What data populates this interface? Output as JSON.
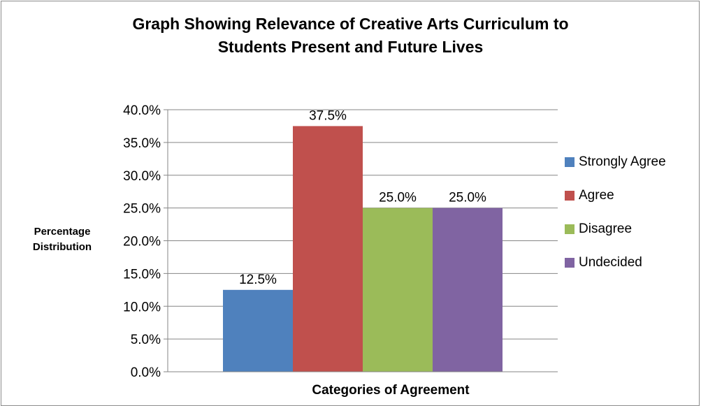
{
  "chart_data": {
    "type": "bar",
    "title_line1": "Graph Showing Relevance of Creative Arts Curriculum to",
    "title_line2": "Students Present and Future Lives",
    "ylabel_line1": "Percentage",
    "ylabel_line2": "Distribution",
    "xlabel": "Categories of Agreement",
    "ylim": [
      0,
      40
    ],
    "yticks": [
      "0.0%",
      "5.0%",
      "10.0%",
      "15.0%",
      "20.0%",
      "25.0%",
      "30.0%",
      "35.0%",
      "40.0%"
    ],
    "ytick_values": [
      0,
      5,
      10,
      15,
      20,
      25,
      30,
      35,
      40
    ],
    "grid": true,
    "legend_position": "right",
    "series": [
      {
        "name": "Strongly Agree",
        "value": 12.5,
        "label": "12.5%",
        "color": "#4f81bd"
      },
      {
        "name": "Agree",
        "value": 37.5,
        "label": "37.5%",
        "color": "#c0504d"
      },
      {
        "name": "Disagree",
        "value": 25.0,
        "label": "25.0%",
        "color": "#9bbb59"
      },
      {
        "name": "Undecided",
        "value": 25.0,
        "label": "25.0%",
        "color": "#8064a2"
      }
    ]
  }
}
